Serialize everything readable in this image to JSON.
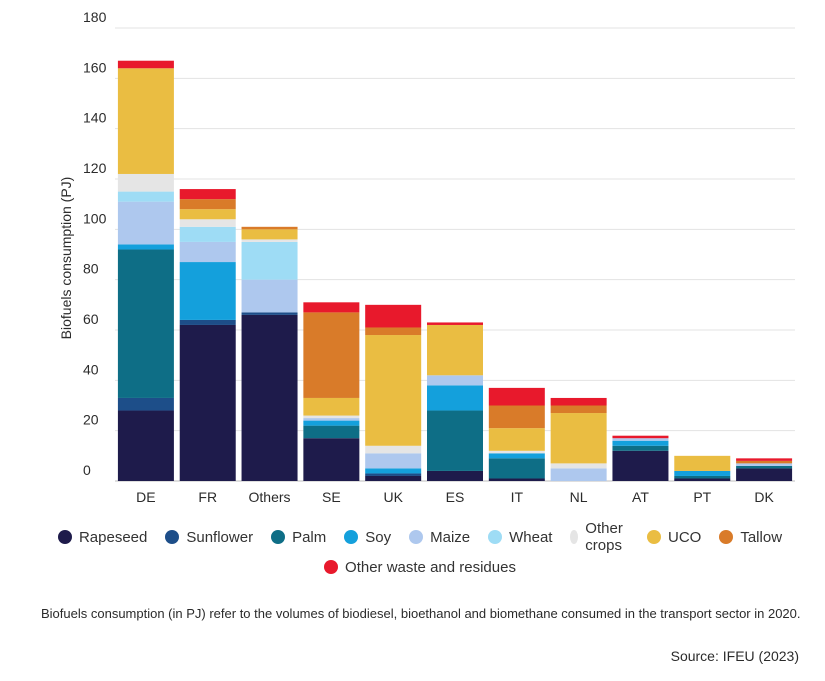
{
  "chart_data": {
    "type": "bar",
    "stacked": true,
    "ylabel": "Biofuels consumption (PJ)",
    "xlabel": "",
    "ylim": [
      0,
      180
    ],
    "yticks": [
      0,
      20,
      40,
      60,
      80,
      100,
      120,
      140,
      160,
      180
    ],
    "grid": true,
    "legend_position": "bottom",
    "categories": [
      "DE",
      "FR",
      "Others",
      "SE",
      "UK",
      "ES",
      "IT",
      "NL",
      "AT",
      "PT",
      "DK"
    ],
    "series": [
      {
        "name": "Rapeseed",
        "color": "#1e1b4b",
        "values": [
          28,
          62,
          66,
          17,
          2,
          4,
          1,
          0,
          12,
          1,
          5
        ]
      },
      {
        "name": "Sunflower",
        "color": "#1d4e89",
        "values": [
          5,
          2,
          1,
          0,
          1,
          0,
          0,
          0,
          0,
          0,
          0
        ]
      },
      {
        "name": "Palm",
        "color": "#0e6e86",
        "values": [
          59,
          0,
          0,
          5,
          0,
          24,
          8,
          0,
          2,
          1,
          1
        ]
      },
      {
        "name": "Soy",
        "color": "#14a0dc",
        "values": [
          2,
          23,
          0,
          2,
          2,
          10,
          2,
          0,
          2,
          2,
          0
        ]
      },
      {
        "name": "Maize",
        "color": "#aec8ee",
        "values": [
          17,
          8,
          13,
          1,
          6,
          4,
          0,
          5,
          1,
          0,
          1
        ]
      },
      {
        "name": "Wheat",
        "color": "#9edcf5",
        "values": [
          4,
          6,
          15,
          0,
          0,
          0,
          0,
          0,
          0,
          0,
          0
        ]
      },
      {
        "name": "Other crops",
        "color": "#e5e5e5",
        "values": [
          7,
          3,
          1,
          1,
          3,
          0,
          1,
          2,
          0,
          0,
          0
        ]
      },
      {
        "name": "UCO",
        "color": "#eabd42",
        "values": [
          42,
          4,
          4,
          7,
          44,
          20,
          9,
          20,
          0,
          6,
          0
        ]
      },
      {
        "name": "Tallow",
        "color": "#d97b29",
        "values": [
          0,
          4,
          1,
          34,
          3,
          0,
          9,
          3,
          0,
          0,
          1
        ]
      },
      {
        "name": "Other waste and residues",
        "color": "#e8192c",
        "values": [
          3,
          4,
          0,
          4,
          9,
          1,
          7,
          3,
          1,
          0,
          1
        ]
      }
    ]
  },
  "note": "Biofuels consumption (in PJ) refer to the volumes of biodiesel, bioethanol and biomethane consumed in the transport sector in 2020.",
  "source": "Source: IFEU (2023)"
}
